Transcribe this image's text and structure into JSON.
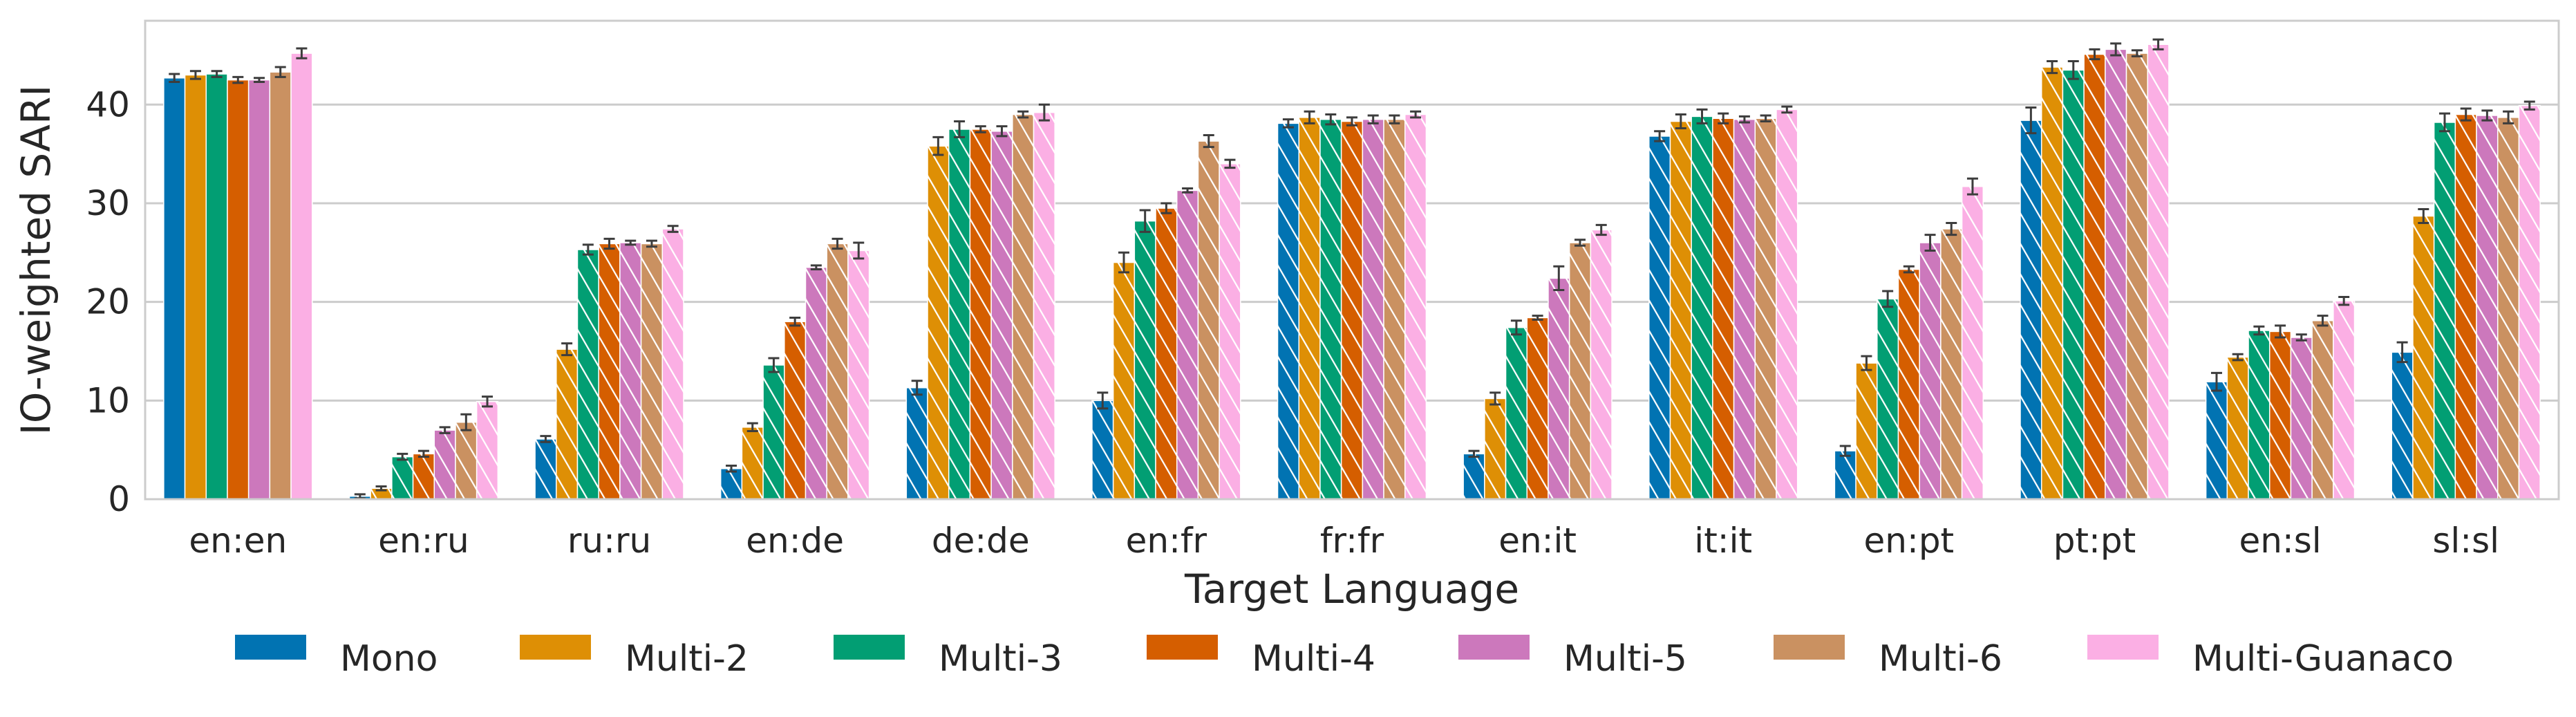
{
  "chart_data": {
    "type": "bar",
    "xlabel": "Target Language",
    "ylabel": "IO-weighted SARI",
    "ylim": [
      0,
      48.5
    ],
    "yticks": [
      0,
      10,
      20,
      30,
      40
    ],
    "grid": "horizontal",
    "legend_position": "bottom",
    "categories": [
      "en:en",
      "en:ru",
      "ru:ru",
      "en:de",
      "de:de",
      "en:fr",
      "fr:fr",
      "en:it",
      "it:it",
      "en:pt",
      "pt:pt",
      "en:sl",
      "sl:sl"
    ],
    "hatched_categories": [
      "en:ru",
      "ru:ru",
      "en:de",
      "de:de",
      "en:fr",
      "fr:fr",
      "en:it",
      "it:it",
      "en:pt",
      "pt:pt",
      "en:sl",
      "sl:sl"
    ],
    "series": [
      {
        "name": "Mono",
        "color": "#0173b2",
        "values": [
          42.7,
          0.3,
          6.1,
          3.1,
          11.3,
          10.0,
          38.1,
          4.6,
          36.8,
          4.9,
          38.4,
          11.9,
          14.9
        ],
        "errors": [
          0.4,
          0.2,
          0.3,
          0.3,
          0.7,
          0.8,
          0.4,
          0.3,
          0.5,
          0.5,
          1.3,
          0.9,
          1.0
        ]
      },
      {
        "name": "Multi-2",
        "color": "#de8f05",
        "values": [
          43.0,
          1.1,
          15.2,
          7.3,
          35.8,
          24.0,
          38.7,
          10.2,
          38.3,
          13.8,
          43.8,
          14.4,
          28.7
        ],
        "errors": [
          0.4,
          0.2,
          0.6,
          0.4,
          0.9,
          1.0,
          0.6,
          0.6,
          0.7,
          0.7,
          0.6,
          0.3,
          0.7
        ]
      },
      {
        "name": "Multi-3",
        "color": "#029e73",
        "values": [
          43.1,
          4.3,
          25.3,
          13.6,
          37.5,
          28.2,
          38.5,
          17.4,
          38.8,
          20.3,
          43.5,
          17.1,
          38.2
        ],
        "errors": [
          0.3,
          0.3,
          0.5,
          0.7,
          0.8,
          1.1,
          0.5,
          0.7,
          0.7,
          0.8,
          0.9,
          0.4,
          0.9
        ]
      },
      {
        "name": "Multi-4",
        "color": "#d55e00",
        "values": [
          42.5,
          4.6,
          25.9,
          18.0,
          37.5,
          29.5,
          38.3,
          18.4,
          38.6,
          23.3,
          45.1,
          17.0,
          39.0
        ],
        "errors": [
          0.3,
          0.3,
          0.5,
          0.4,
          0.3,
          0.5,
          0.4,
          0.2,
          0.5,
          0.3,
          0.5,
          0.6,
          0.6
        ]
      },
      {
        "name": "Multi-5",
        "color": "#cc78bc",
        "values": [
          42.5,
          7.0,
          26.0,
          23.5,
          37.3,
          31.3,
          38.5,
          22.4,
          38.5,
          26.0,
          45.6,
          16.4,
          38.9
        ],
        "errors": [
          0.2,
          0.3,
          0.2,
          0.2,
          0.5,
          0.2,
          0.4,
          1.2,
          0.3,
          0.8,
          0.6,
          0.3,
          0.5
        ]
      },
      {
        "name": "Multi-6",
        "color": "#ca9161",
        "values": [
          43.3,
          7.8,
          25.9,
          25.9,
          39.0,
          36.3,
          38.5,
          26.0,
          38.6,
          27.4,
          45.2,
          18.1,
          38.7
        ],
        "errors": [
          0.5,
          0.8,
          0.3,
          0.5,
          0.3,
          0.6,
          0.4,
          0.3,
          0.3,
          0.6,
          0.3,
          0.5,
          0.6
        ]
      },
      {
        "name": "Multi-Guanaco",
        "color": "#fbafe4",
        "values": [
          45.2,
          9.9,
          27.4,
          25.2,
          39.2,
          34.0,
          39.0,
          27.3,
          39.5,
          31.7,
          46.1,
          20.1,
          39.9
        ],
        "errors": [
          0.5,
          0.5,
          0.3,
          0.8,
          0.8,
          0.4,
          0.3,
          0.5,
          0.3,
          0.8,
          0.5,
          0.4,
          0.4
        ]
      }
    ]
  }
}
